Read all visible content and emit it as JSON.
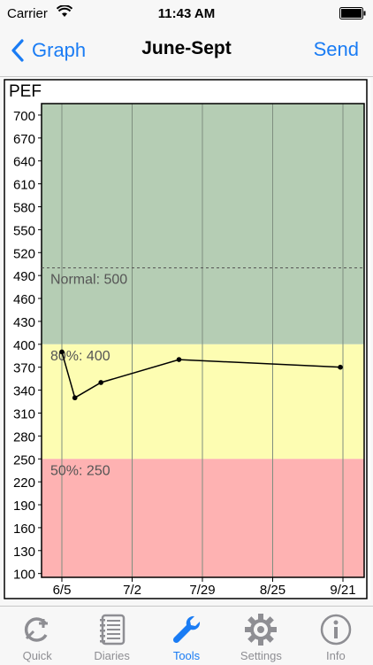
{
  "status": {
    "carrier": "Carrier",
    "time": "11:43 AM"
  },
  "nav": {
    "back_label": "Graph",
    "title": "June-Sept",
    "send_label": "Send"
  },
  "zones": {
    "green": "#b5cdb4",
    "yellow": "#fdfdb2",
    "red": "#feb2b2",
    "normal_label": "Normal: 500",
    "eighty_label": "80%: 400",
    "fifty_label": "50%: 250"
  },
  "chart_data": {
    "type": "line",
    "ylabel": "PEF",
    "ylim": [
      95,
      715
    ],
    "yticks": [
      700,
      670,
      640,
      610,
      580,
      550,
      520,
      490,
      460,
      430,
      400,
      370,
      340,
      310,
      280,
      250,
      220,
      190,
      160,
      130,
      100
    ],
    "xticks": [
      "6/5",
      "7/2",
      "7/29",
      "8/25",
      "9/21"
    ],
    "x": [
      "6/5",
      "6/10",
      "6/20",
      "7/20",
      "9/20"
    ],
    "values": [
      390,
      330,
      350,
      380,
      370
    ],
    "zones": [
      {
        "from": 400,
        "to": 715,
        "color": "#b5cdb4"
      },
      {
        "from": 250,
        "to": 400,
        "color": "#fdfdb2"
      },
      {
        "from": 95,
        "to": 250,
        "color": "#feb2b2"
      }
    ],
    "reference_lines": [
      {
        "y": 500,
        "label": "Normal: 500"
      }
    ],
    "grid": true
  },
  "tabs": [
    {
      "label": "Quick",
      "icon": "quick-add-icon",
      "active": false
    },
    {
      "label": "Diaries",
      "icon": "notebook-icon",
      "active": false
    },
    {
      "label": "Tools",
      "icon": "wrench-icon",
      "active": true
    },
    {
      "label": "Settings",
      "icon": "gear-icon",
      "active": false
    },
    {
      "label": "Info",
      "icon": "info-icon",
      "active": false
    }
  ]
}
